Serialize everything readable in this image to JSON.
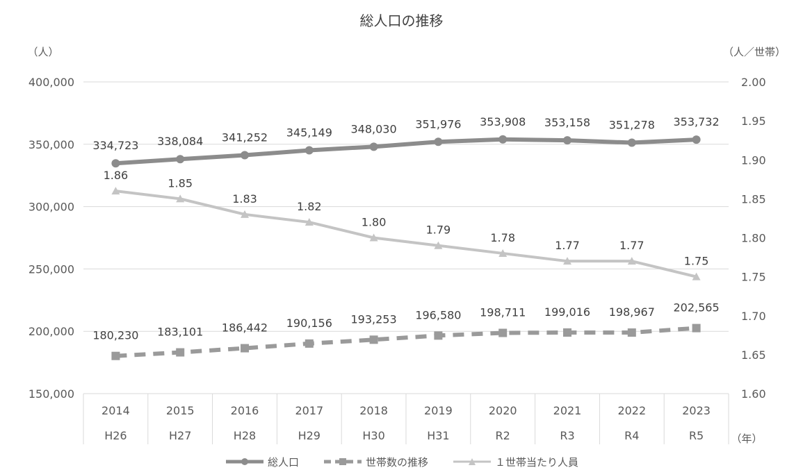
{
  "chart_data": {
    "type": "line",
    "title": "総人口の推移",
    "y_left_unit": "（人）",
    "y_right_unit": "（人／世帯）",
    "x_unit": "（年）",
    "categories": [
      "2014",
      "2015",
      "2016",
      "2017",
      "2018",
      "2019",
      "2020",
      "2021",
      "2022",
      "2023"
    ],
    "categories_era": [
      "H26",
      "H27",
      "H28",
      "H29",
      "H30",
      "H31",
      "R2",
      "R3",
      "R4",
      "R5"
    ],
    "y_left": {
      "min": 150000,
      "max": 400000,
      "step": 50000,
      "tick_labels": [
        "150,000",
        "200,000",
        "250,000",
        "300,000",
        "350,000",
        "400,000"
      ]
    },
    "y_right": {
      "min": 1.6,
      "max": 2.0,
      "step": 0.05,
      "tick_labels": [
        "1.60",
        "1.65",
        "1.70",
        "1.75",
        "1.80",
        "1.85",
        "1.90",
        "1.95",
        "2.00"
      ]
    },
    "grid": true,
    "legend_position": "bottom",
    "series": [
      {
        "name": "総人口",
        "axis": "left",
        "color": "#8c8c8c",
        "dash": "solid",
        "marker": "circle",
        "values": [
          334723,
          338084,
          341252,
          345149,
          348030,
          351976,
          353908,
          353158,
          351278,
          353732
        ],
        "labels": [
          "334,723",
          "338,084",
          "341,252",
          "345,149",
          "348,030",
          "351,976",
          "353,908",
          "353,158",
          "351,278",
          "353,732"
        ]
      },
      {
        "name": "世帯数の推移",
        "axis": "left",
        "color": "#9a9a9a",
        "dash": "dashed",
        "marker": "square",
        "values": [
          180230,
          183101,
          186442,
          190156,
          193253,
          196580,
          198711,
          199016,
          198967,
          202565
        ],
        "labels": [
          "180,230",
          "183,101",
          "186,442",
          "190,156",
          "193,253",
          "196,580",
          "198,711",
          "199,016",
          "198,967",
          "202,565"
        ]
      },
      {
        "name": "１世帯当たり人員",
        "axis": "right",
        "color": "#c4c4c4",
        "dash": "solid",
        "marker": "triangle",
        "values": [
          1.86,
          1.85,
          1.83,
          1.82,
          1.8,
          1.79,
          1.78,
          1.77,
          1.77,
          1.75
        ],
        "labels": [
          "1.86",
          "1.85",
          "1.83",
          "1.82",
          "1.80",
          "1.79",
          "1.78",
          "1.77",
          "1.77",
          "1.75"
        ]
      }
    ]
  }
}
